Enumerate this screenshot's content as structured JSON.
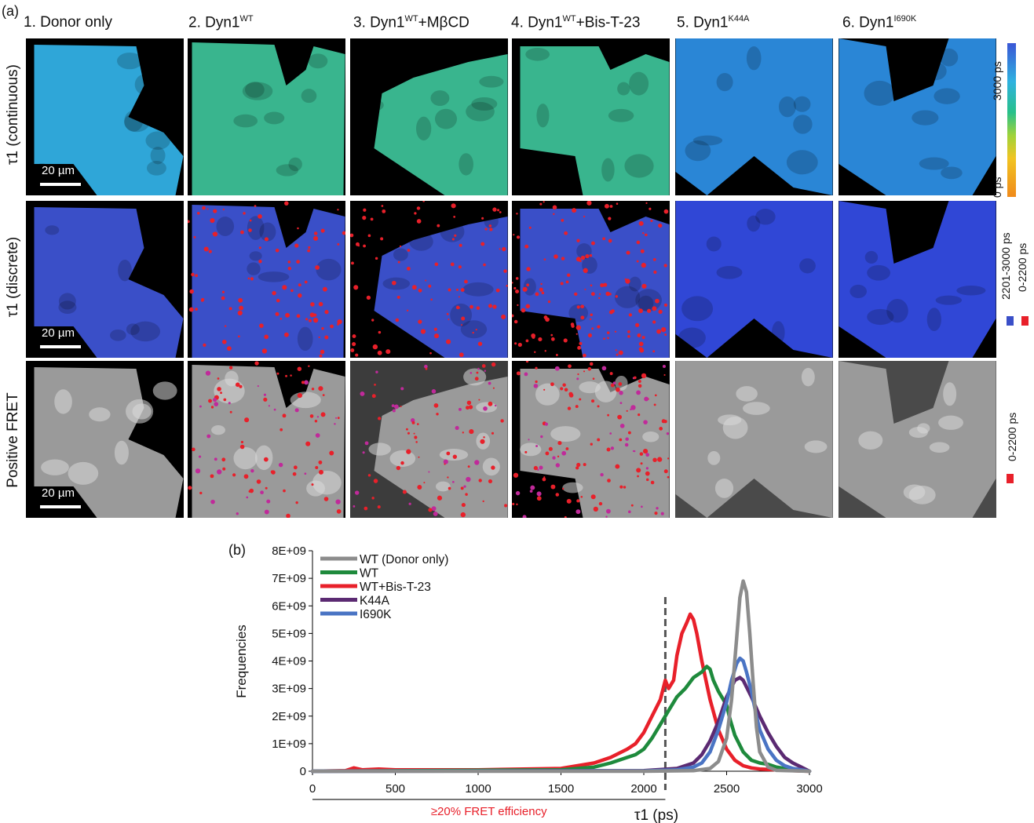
{
  "panel_a_label": "(a)",
  "panel_b_label": "(b)",
  "columns": [
    {
      "main": "1. Donor only",
      "sup": "",
      "rest": ""
    },
    {
      "main": "2. Dyn1",
      "sup": "WT",
      "rest": ""
    },
    {
      "main": "3. Dyn1",
      "sup": "WT",
      "rest": "+MβCD"
    },
    {
      "main": "4. Dyn1",
      "sup": "WT",
      "rest": "+Bis-T-23"
    },
    {
      "main": "5. Dyn1",
      "sup": "K44A",
      "rest": ""
    },
    {
      "main": "6. Dyn1",
      "sup": "I690K",
      "rest": ""
    }
  ],
  "rows": [
    {
      "label": "τ1 (continuous)",
      "scale_bar": "20 µm"
    },
    {
      "label": "τ1 (discrete)",
      "scale_bar": "20 µm"
    },
    {
      "label": "Positive FRET",
      "scale_bar": "20 µm"
    }
  ],
  "colorbars": {
    "continuous_top": "3000 ps",
    "continuous_bottom": "0 ps",
    "discrete_high": "2201-3000 ps",
    "discrete_low": "0-2200 ps",
    "fret_low": "0-2200 ps",
    "blue": "#3a4fc8",
    "red": "#e8202a"
  },
  "chart_data": {
    "type": "line",
    "xlabel": "τ1 (ps)",
    "ylabel": "Frequencies",
    "xlim": [
      0,
      3000
    ],
    "ylim": [
      0,
      8000000000
    ],
    "xticks": [
      "0",
      "500",
      "1000",
      "1500",
      "2000",
      "2500",
      "3000"
    ],
    "yticks": [
      "0",
      "1E+09",
      "2E+09",
      "3E+09",
      "4E+09",
      "5E+09",
      "6E+09",
      "7E+09",
      "8E+09"
    ],
    "threshold_x": 2130,
    "annotation": "≥20% FRET efficiency",
    "annotation_range": [
      0,
      2130
    ],
    "legend_position": "top-left",
    "series": [
      {
        "name": "WT (Donor only)",
        "color": "#8c8c8c",
        "x": [
          0,
          2000,
          2300,
          2400,
          2450,
          2500,
          2530,
          2560,
          2580,
          2600,
          2620,
          2640,
          2660,
          2680,
          2700,
          2750,
          2800,
          3000
        ],
        "y": [
          0,
          0,
          20000000.0,
          100000000.0,
          350000000.0,
          1200000000.0,
          2600000000.0,
          4800000000.0,
          6300000000.0,
          6900000000.0,
          6500000000.0,
          5000000000.0,
          3200000000.0,
          1600000000.0,
          700000000.0,
          150000000.0,
          30000000.0,
          0
        ]
      },
      {
        "name": "WT",
        "color": "#1e8a3c",
        "x": [
          0,
          1500,
          1700,
          1800,
          1900,
          1950,
          2000,
          2050,
          2100,
          2150,
          2200,
          2250,
          2300,
          2350,
          2380,
          2400,
          2420,
          2450,
          2480,
          2500,
          2520,
          2550,
          2600,
          2650,
          2700,
          2750,
          2800,
          2900,
          3000
        ],
        "y": [
          0,
          50000000.0,
          150000000.0,
          300000000.0,
          500000000.0,
          600000000.0,
          800000000.0,
          1200000000.0,
          1700000000.0,
          2200000000.0,
          2700000000.0,
          3000000000.0,
          3400000000.0,
          3600000000.0,
          3800000000.0,
          3700000000.0,
          3300000000.0,
          2900000000.0,
          2600000000.0,
          2400000000.0,
          1900000000.0,
          1300000000.0,
          700000000.0,
          400000000.0,
          300000000.0,
          250000000.0,
          150000000.0,
          50000000.0,
          0
        ]
      },
      {
        "name": "WT+Bis-T-23",
        "color": "#e8202a",
        "x": [
          0,
          200,
          250,
          300,
          400,
          500,
          1000,
          1500,
          1700,
          1800,
          1900,
          1950,
          2000,
          2050,
          2100,
          2130,
          2150,
          2180,
          2200,
          2230,
          2260,
          2280,
          2300,
          2320,
          2350,
          2400,
          2450,
          2500,
          2550,
          2600,
          2650,
          2700,
          2800,
          2900,
          3000
        ],
        "y": [
          0,
          20000000.0,
          120000000.0,
          50000000.0,
          80000000.0,
          50000000.0,
          50000000.0,
          100000000.0,
          300000000.0,
          500000000.0,
          800000000.0,
          1000000000.0,
          1400000000.0,
          2000000000.0,
          2600000000.0,
          3300000000.0,
          3000000000.0,
          3300000000.0,
          4200000000.0,
          5000000000.0,
          5400000000.0,
          5700000000.0,
          5500000000.0,
          5000000000.0,
          4000000000.0,
          2600000000.0,
          1500000000.0,
          800000000.0,
          400000000.0,
          200000000.0,
          120000000.0,
          80000000.0,
          50000000.0,
          20000000.0,
          0
        ]
      },
      {
        "name": "K44A",
        "color": "#5b2a72",
        "x": [
          0,
          2000,
          2200,
          2300,
          2350,
          2400,
          2450,
          2500,
          2550,
          2580,
          2600,
          2650,
          2700,
          2750,
          2800,
          2850,
          2900,
          2950,
          3000
        ],
        "y": [
          0,
          20000000.0,
          100000000.0,
          300000000.0,
          600000000.0,
          1100000000.0,
          1800000000.0,
          2700000000.0,
          3300000000.0,
          3400000000.0,
          3300000000.0,
          2700000000.0,
          2000000000.0,
          1400000000.0,
          900000000.0,
          500000000.0,
          300000000.0,
          150000000.0,
          0
        ]
      },
      {
        "name": "I690K",
        "color": "#4a74c4",
        "x": [
          0,
          2000,
          2200,
          2300,
          2350,
          2400,
          2450,
          2500,
          2530,
          2560,
          2580,
          2600,
          2620,
          2650,
          2680,
          2700,
          2750,
          2800,
          2850,
          2900,
          3000
        ],
        "y": [
          0,
          10000000.0,
          50000000.0,
          150000000.0,
          300000000.0,
          700000000.0,
          1500000000.0,
          2500000000.0,
          3300000000.0,
          3900000000.0,
          4100000000.0,
          4000000000.0,
          3600000000.0,
          2900000000.0,
          2000000000.0,
          1500000000.0,
          800000000.0,
          400000000.0,
          200000000.0,
          100000000.0,
          0
        ]
      }
    ]
  }
}
